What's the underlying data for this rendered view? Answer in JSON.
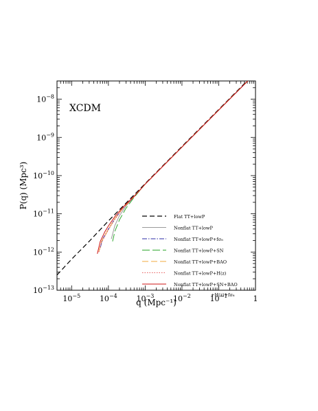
{
  "chart_data": {
    "type": "line",
    "annotation": "XCDM",
    "xlabel": "q (Mpc⁻¹)",
    "ylabel": "P(q) (Mpc³)",
    "xscale": "log",
    "yscale": "log",
    "xlim": [
      4e-06,
      1
    ],
    "ylim": [
      1e-13,
      3e-08
    ],
    "grid": false,
    "legend_position": "lower-right",
    "x_ticks": [
      {
        "value": 1e-05,
        "base": "10",
        "exp": "−5"
      },
      {
        "value": 0.0001,
        "base": "10",
        "exp": "−4"
      },
      {
        "value": 0.001,
        "base": "10",
        "exp": "−3"
      },
      {
        "value": 0.01,
        "base": "10",
        "exp": "−2"
      },
      {
        "value": 0.1,
        "base": "10",
        "exp": "−1"
      },
      {
        "value": 1,
        "base": "1",
        "exp": ""
      }
    ],
    "y_ticks": [
      {
        "value": 1e-13,
        "base": "10",
        "exp": "−13"
      },
      {
        "value": 1e-12,
        "base": "10",
        "exp": "−12"
      },
      {
        "value": 1e-11,
        "base": "10",
        "exp": "−11"
      },
      {
        "value": 1e-10,
        "base": "10",
        "exp": "−10"
      },
      {
        "value": 1e-09,
        "base": "10",
        "exp": "−9"
      },
      {
        "value": 1e-08,
        "base": "10",
        "exp": "−8"
      }
    ],
    "series": [
      {
        "name": "Flat TT+lowP",
        "color": "#000000",
        "dash": "7,4",
        "width": 1.2,
        "x": [
          4e-06,
          1e-05,
          3e-05,
          0.0001,
          0.0003,
          0.001,
          0.01,
          0.1,
          1
        ],
        "y": [
          2.5e-13,
          6.5e-13,
          1.9e-12,
          6.5e-12,
          1.9e-11,
          6.2e-11,
          5.8e-10,
          5.4e-09,
          5e-08
        ]
      },
      {
        "name": "Nonflat TT+lowP",
        "color": "#9a9a9a",
        "dash": "",
        "width": 1.0,
        "x": [
          0.00012,
          0.00015,
          0.0002,
          0.0003,
          0.0005,
          0.001,
          0.01,
          0.1,
          1
        ],
        "y": [
          2.2e-12,
          5e-12,
          9e-12,
          1.6e-11,
          2.8e-11,
          6e-11,
          5.6e-10,
          5.2e-09,
          4.8e-08
        ]
      },
      {
        "name": "Nonflat TT+lowP+fσ₈",
        "color": "#2a2aa6",
        "dash": "7,2,1.5,2",
        "width": 1.0,
        "x": [
          6e-05,
          7e-05,
          0.0001,
          0.00015,
          0.00025,
          0.0005,
          0.001,
          0.01,
          0.1,
          1
        ],
        "y": [
          1.3e-12,
          2.2e-12,
          4e-12,
          7.5e-12,
          1.4e-11,
          2.8e-11,
          6e-11,
          5.6e-10,
          5.2e-09,
          4.8e-08
        ]
      },
      {
        "name": "Nonflat TT+lowP+SN",
        "color": "#2fa82f",
        "dash": "11,4",
        "width": 1.0,
        "x": [
          0.00013,
          0.00015,
          0.0002,
          0.0003,
          0.0005,
          0.001,
          0.01,
          0.1,
          1
        ],
        "y": [
          1.9e-12,
          3.5e-12,
          7e-12,
          1.4e-11,
          2.7e-11,
          6e-11,
          5.6e-10,
          5.2e-09,
          4.8e-08
        ]
      },
      {
        "name": "Nonflat TT+lowP+BAO",
        "color": "#f0a93c",
        "dash": "9,4",
        "width": 1.0,
        "x": [
          5.5e-05,
          6.5e-05,
          0.0001,
          0.00015,
          0.00025,
          0.0005,
          0.001,
          0.01,
          0.1,
          1
        ],
        "y": [
          1e-12,
          1.9e-12,
          4e-12,
          7.5e-12,
          1.4e-11,
          2.8e-11,
          6e-11,
          5.6e-10,
          5.2e-09,
          4.8e-08
        ]
      },
      {
        "name": "Nonflat TT+lowP+H(z)",
        "color": "#e85a5a",
        "dash": "1.5,2",
        "width": 1.1,
        "x": [
          5.5e-05,
          6.5e-05,
          0.0001,
          0.00015,
          0.00025,
          0.0005,
          0.001,
          0.01,
          0.1,
          1
        ],
        "y": [
          1e-12,
          1.8e-12,
          3.8e-12,
          7.2e-12,
          1.4e-11,
          2.8e-11,
          6e-11,
          5.6e-10,
          5.2e-09,
          4.8e-08
        ]
      },
      {
        "name": "Nonflat TT+lowP+SN+BAO",
        "name_line2": "+H(z)+fσ₈",
        "color": "#cc1111",
        "dash": "",
        "width": 1.0,
        "x": [
          5e-05,
          6e-05,
          8e-05,
          0.0001,
          0.00015,
          0.00025,
          0.0005,
          0.001,
          0.01,
          0.1,
          1
        ],
        "y": [
          9e-13,
          1.9e-12,
          3.4e-12,
          4.8e-12,
          8.5e-12,
          1.5e-11,
          2.9e-11,
          6e-11,
          5.6e-10,
          5.2e-09,
          4.8e-08
        ]
      }
    ]
  }
}
